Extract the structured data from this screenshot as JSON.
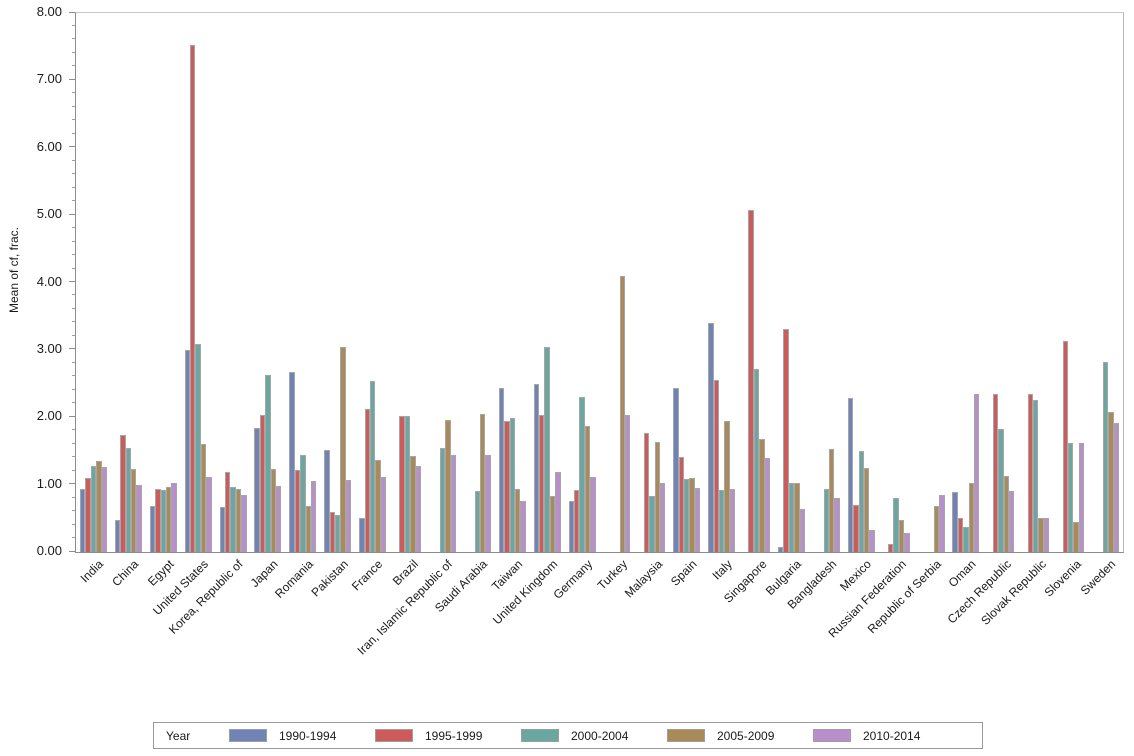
{
  "chart_data": {
    "type": "bar",
    "title": "",
    "xlabel": "",
    "ylabel": "Mean of cf, frac.",
    "ylim": [
      0,
      8
    ],
    "ytick_step": 1,
    "ytick_minor_step": 0.2,
    "ytick_labels": [
      "0.00",
      "1.00",
      "2.00",
      "3.00",
      "4.00",
      "5.00",
      "6.00",
      "7.00",
      "8.00"
    ],
    "grid": "off",
    "legend_title": "Year",
    "legend_position": "bottom",
    "bar_border_color": "#a6a6a6",
    "axis_color": "#8c8c8c",
    "categories": [
      "India",
      "China",
      "Egypt",
      "United States",
      "Korea, Republic of",
      "Japan",
      "Romania",
      "Pakistan",
      "France",
      "Brazil",
      "Iran, Islamic Republic of",
      "Saudi Arabia",
      "Taiwan",
      "United Kingdom",
      "Germany",
      "Turkey",
      "Malaysia",
      "Spain",
      "Italy",
      "Singapore",
      "Bulgaria",
      "Bangladesh",
      "Mexico",
      "Russian Federation",
      "Republic of Serbia",
      "Oman",
      "Czech Republic",
      "Slovak Republic",
      "Slovenia",
      "Sweden"
    ],
    "series": [
      {
        "name": "1990-1994",
        "color": "#7183b5",
        "values": [
          0.93,
          0.48,
          0.69,
          3.0,
          0.67,
          1.84,
          2.67,
          1.51,
          0.51,
          null,
          null,
          null,
          2.44,
          2.49,
          0.76,
          null,
          null,
          2.43,
          3.4,
          null,
          0.07,
          null,
          2.28,
          null,
          null,
          0.89,
          null,
          null,
          null,
          null
        ]
      },
      {
        "name": "1995-1999",
        "color": "#cd5b5b",
        "values": [
          1.1,
          1.74,
          0.94,
          7.52,
          1.19,
          2.03,
          1.21,
          0.59,
          2.13,
          2.02,
          null,
          null,
          1.95,
          2.03,
          0.92,
          null,
          1.77,
          1.41,
          2.55,
          5.07,
          3.31,
          null,
          0.7,
          0.12,
          null,
          0.51,
          2.35,
          2.35,
          3.13,
          null
        ]
      },
      {
        "name": "2000-2004",
        "color": "#6aa7a0",
        "values": [
          1.28,
          1.54,
          0.92,
          3.08,
          0.96,
          2.62,
          1.44,
          0.55,
          2.54,
          2.02,
          1.55,
          0.9,
          1.99,
          3.04,
          2.3,
          null,
          0.83,
          1.09,
          0.92,
          2.72,
          1.02,
          0.94,
          1.5,
          0.8,
          null,
          0.37,
          1.82,
          2.25,
          1.62,
          2.82
        ]
      },
      {
        "name": "2005-2009",
        "color": "#aa8a59",
        "values": [
          1.35,
          1.23,
          0.96,
          1.61,
          0.94,
          1.23,
          0.68,
          3.05,
          1.37,
          1.43,
          1.96,
          2.05,
          0.94,
          0.83,
          1.87,
          4.1,
          1.63,
          1.1,
          1.95,
          1.68,
          1.03,
          1.53,
          1.24,
          0.48,
          0.68,
          1.02,
          1.13,
          0.5,
          0.45,
          2.08
        ]
      },
      {
        "name": "2010-2014",
        "color": "#b88fcb",
        "values": [
          1.26,
          1.0,
          1.03,
          1.12,
          0.85,
          0.98,
          1.06,
          1.07,
          1.11,
          1.27,
          1.44,
          1.44,
          0.75,
          1.19,
          1.12,
          2.03,
          1.02,
          0.95,
          0.94,
          1.4,
          0.64,
          0.8,
          0.32,
          0.28,
          0.84,
          2.35,
          0.91,
          0.5,
          1.62,
          1.91
        ]
      }
    ]
  }
}
